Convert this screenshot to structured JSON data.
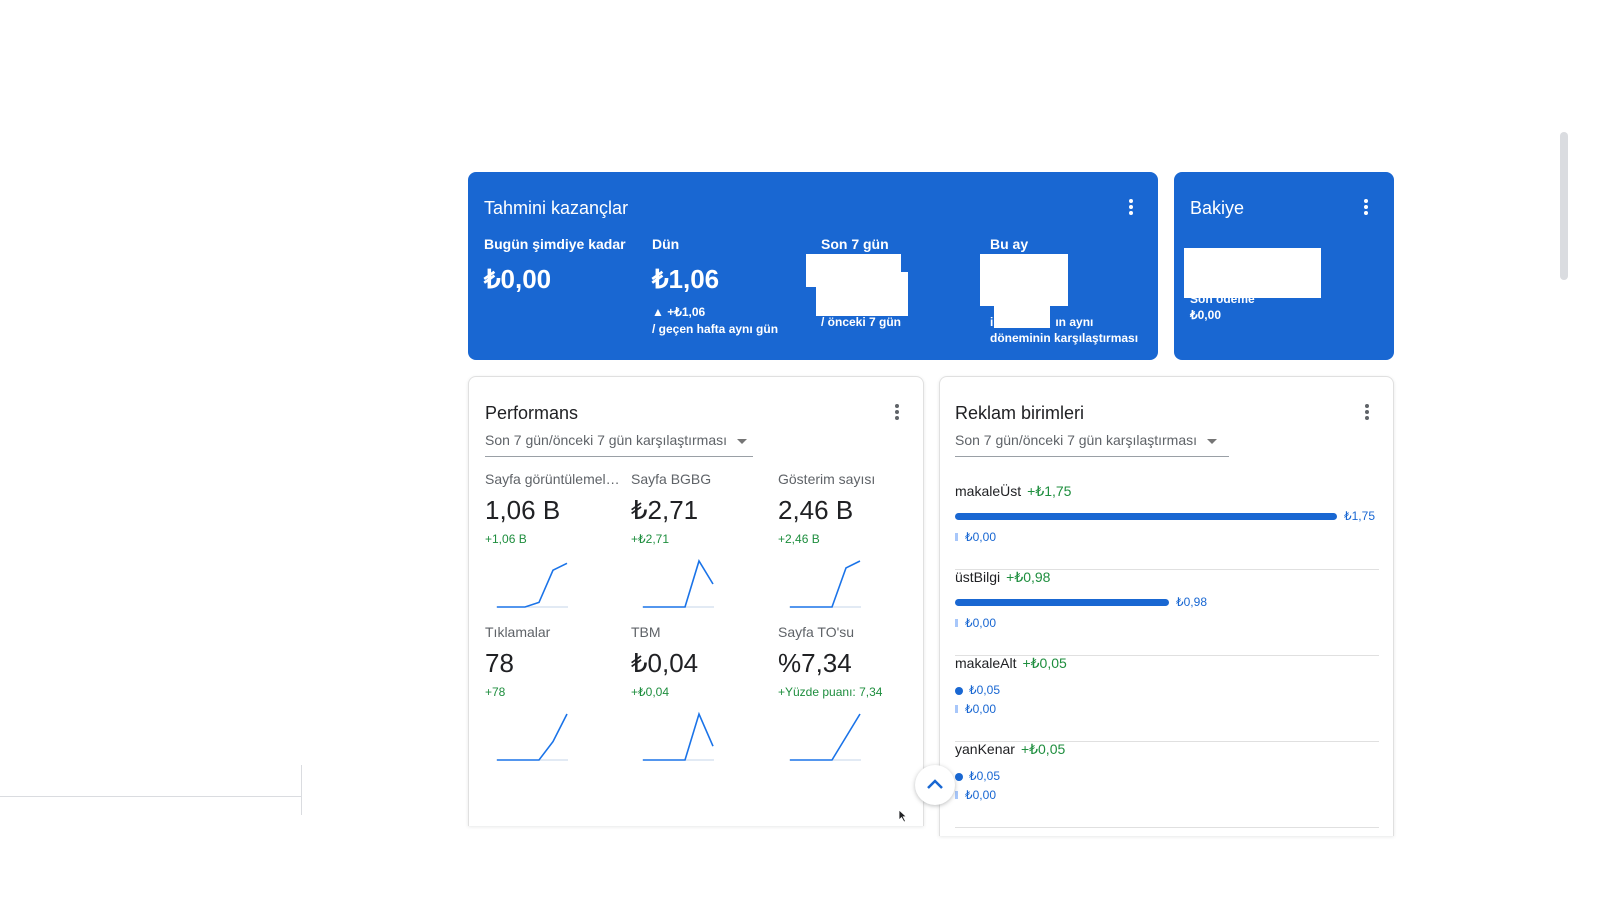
{
  "earnings": {
    "title": "Tahmini kazançlar",
    "today": {
      "label": "Bugün şimdiye kadar",
      "value": "₺0,00"
    },
    "yesterday": {
      "label": "Dün",
      "value": "₺1,06",
      "change": "▲ +₺1,06",
      "compare": "/ geçen hafta aynı gün"
    },
    "last7": {
      "label": "Son 7 gün",
      "compare": "/ önceki 7 gün"
    },
    "this_month": {
      "label": "Bu ay",
      "compare_a": "i",
      "compare_b": "ın aynı",
      "compare_c": "döneminin karşılaştırması"
    }
  },
  "balance": {
    "title": "Bakiye",
    "last_payment_label": "Son ödeme",
    "last_payment_value": "₺0,00"
  },
  "performance": {
    "title": "Performans",
    "dropdown": "Son 7 gün/önceki 7 gün karşılaştırması",
    "metrics": [
      {
        "label": "Sayfa görüntülemeleri",
        "value": "1,06 B",
        "change": "+1,06 B",
        "trend": [
          0,
          0,
          0,
          0.1,
          0.8,
          0.95
        ]
      },
      {
        "label": "Sayfa BGBG",
        "value": "₺2,71",
        "change": "+₺2,71",
        "trend": [
          0,
          0,
          0,
          0,
          1,
          0.5
        ]
      },
      {
        "label": "Gösterim sayısı",
        "value": "2,46 B",
        "change": "+2,46 B",
        "trend": [
          0,
          0,
          0,
          0,
          0.85,
          1
        ]
      },
      {
        "label": "Tıklamalar",
        "value": "78",
        "change": "+78",
        "trend": [
          0,
          0,
          0,
          0,
          0.4,
          1
        ]
      },
      {
        "label": "TBM",
        "value": "₺0,04",
        "change": "+₺0,04",
        "trend": [
          0,
          0,
          0,
          0,
          1,
          0.3
        ]
      },
      {
        "label": "Sayfa TO'su",
        "value": "%7,34",
        "change": "+Yüzde puanı: 7,34",
        "trend": [
          0,
          0,
          0,
          0,
          0.5,
          1
        ]
      }
    ]
  },
  "ad_units": {
    "title": "Reklam birimleri",
    "dropdown": "Son 7 gün/önceki 7 gün karşılaştırması",
    "units": [
      {
        "name": "makaleÜst",
        "change": "+₺1,75",
        "current": "₺1,75",
        "current_fraction": 1.0,
        "previous": "₺0,00"
      },
      {
        "name": "üstBilgi",
        "change": "+₺0,98",
        "current": "₺0,98",
        "current_fraction": 0.56,
        "previous": "₺0,00"
      },
      {
        "name": "makaleAlt",
        "change": "+₺0,05",
        "current": "₺0,05",
        "current_fraction": 0.0,
        "previous": "₺0,00"
      },
      {
        "name": "yanKenar",
        "change": "+₺0,05",
        "current": "₺0,05",
        "current_fraction": 0.0,
        "previous": "₺0,00"
      }
    ]
  },
  "colors": {
    "primary": "#1967d2",
    "positive": "#1e8e3e",
    "spark": "#1a73e8",
    "previous_bar": "#a8c7fa"
  },
  "icons": {
    "menu": "more-vert-icon",
    "scroll_top": "chevron-up-icon"
  }
}
